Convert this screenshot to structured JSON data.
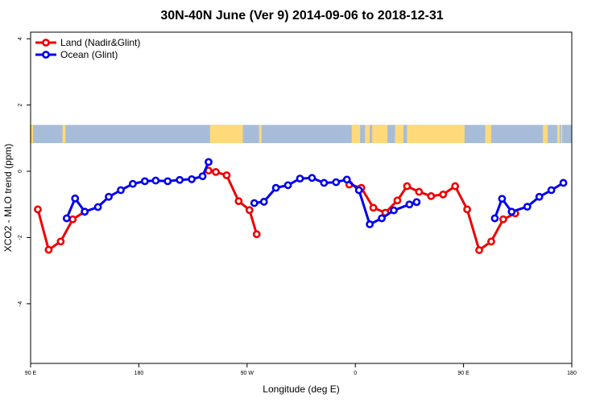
{
  "chart_data": {
    "type": "line",
    "title": "30N-40N June (Ver 9)   2014-09-06 to 2018-12-31",
    "xlabel": "Longitude (deg E)",
    "ylabel": "XCO2 - MLO trend (ppm)",
    "x_ticks": [
      {
        "value": 90,
        "label": "90 E"
      },
      {
        "value": 180,
        "label": "180"
      },
      {
        "value": 270,
        "label": "90 W"
      },
      {
        "value": 360,
        "label": "0"
      },
      {
        "value": 450,
        "label": "90 E"
      },
      {
        "value": 540,
        "label": "180"
      }
    ],
    "y_ticks": [
      {
        "value": -4,
        "label": "-4"
      },
      {
        "value": -2,
        "label": "-2"
      },
      {
        "value": 0,
        "label": "0"
      },
      {
        "value": 2,
        "label": "2"
      },
      {
        "value": 4,
        "label": "4"
      }
    ],
    "xlim": [
      90,
      540
    ],
    "ylim": [
      -5.8,
      4.2
    ],
    "grid": false,
    "legend_position": "top-left",
    "colors": {
      "land": "#ee0000",
      "ocean": "#0000ee",
      "land_mask": "#ffd97a",
      "ocean_mask": "#a7bcd9"
    },
    "series": [
      {
        "name": "Land (Nadir&Glint)",
        "color": "#ee0000",
        "segments": [
          [
            [
              96,
              -1.15
            ],
            [
              105,
              -2.37
            ],
            [
              115,
              -2.12
            ],
            [
              125,
              -1.45
            ],
            [
              135,
              -1.22
            ]
          ],
          [
            [
              238,
              0.02
            ],
            [
              244,
              -0.02
            ],
            [
              253,
              -0.12
            ],
            [
              263,
              -0.9
            ],
            [
              272,
              -1.17
            ],
            [
              278,
              -1.9
            ]
          ],
          [
            [
              355,
              -0.4
            ],
            [
              365,
              -0.5
            ],
            [
              375,
              -1.1
            ],
            [
              385,
              -1.25
            ],
            [
              395,
              -0.88
            ],
            [
              403,
              -0.45
            ],
            [
              413,
              -0.62
            ],
            [
              423,
              -0.75
            ],
            [
              433,
              -0.7
            ],
            [
              443,
              -0.45
            ],
            [
              453,
              -1.15
            ],
            [
              463,
              -2.38
            ],
            [
              473,
              -2.12
            ],
            [
              483,
              -1.45
            ],
            [
              493,
              -1.27
            ]
          ]
        ]
      },
      {
        "name": "Ocean (Glint)",
        "color": "#0000ee",
        "segments": [
          [
            [
              120,
              -1.42
            ],
            [
              127,
              -0.82
            ],
            [
              135,
              -1.22
            ],
            [
              146,
              -1.08
            ],
            [
              155,
              -0.77
            ],
            [
              165,
              -0.57
            ],
            [
              175,
              -0.38
            ],
            [
              185,
              -0.3
            ],
            [
              194,
              -0.28
            ],
            [
              204,
              -0.3
            ],
            [
              214,
              -0.26
            ],
            [
              224,
              -0.24
            ],
            [
              233,
              -0.15
            ],
            [
              238,
              0.28
            ]
          ],
          [
            [
              276,
              -0.96
            ],
            [
              284,
              -0.92
            ],
            [
              294,
              -0.5
            ],
            [
              304,
              -0.42
            ],
            [
              314,
              -0.22
            ],
            [
              324,
              -0.2
            ],
            [
              334,
              -0.35
            ],
            [
              344,
              -0.33
            ],
            [
              353,
              -0.25
            ],
            [
              363,
              -0.57
            ],
            [
              372,
              -1.6
            ],
            [
              382,
              -1.42
            ],
            [
              392,
              -1.18
            ],
            [
              405,
              -1.0
            ],
            [
              411,
              -0.93
            ]
          ],
          [
            [
              476,
              -1.42
            ],
            [
              482,
              -0.83
            ],
            [
              490,
              -1.22
            ],
            [
              503,
              -1.07
            ],
            [
              513,
              -0.77
            ],
            [
              523,
              -0.57
            ],
            [
              533,
              -0.35
            ]
          ]
        ]
      }
    ],
    "map_band": {
      "y_top": 1.4,
      "y_bottom": 0.85,
      "land_spans_x": [
        [
          89.4,
          92
        ],
        [
          116.6,
          119
        ],
        [
          239.2,
          266.5
        ],
        [
          280,
          281
        ],
        [
          280.7,
          282
        ],
        [
          357,
          364
        ],
        [
          368,
          372
        ],
        [
          374,
          386.7
        ],
        [
          393,
          400
        ],
        [
          403,
          450.8
        ],
        [
          468,
          473
        ],
        [
          516,
          520
        ],
        [
          528,
          530
        ],
        [
          531,
          532
        ]
      ]
    }
  }
}
